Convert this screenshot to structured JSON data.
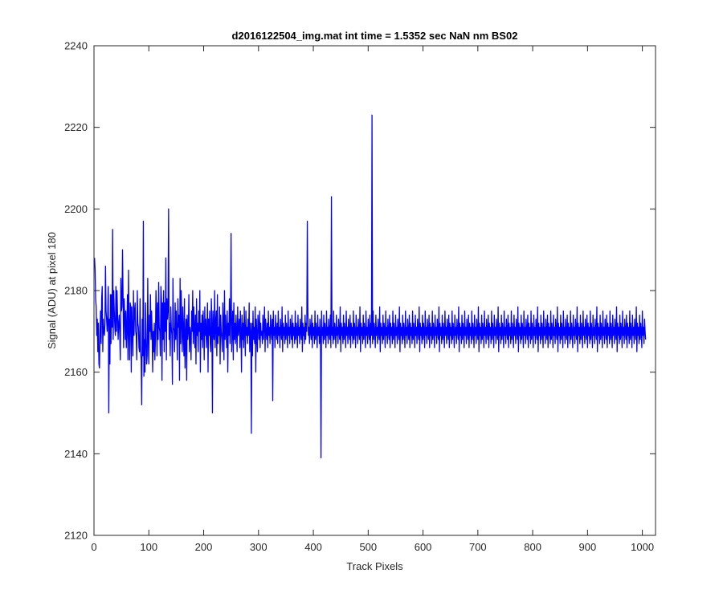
{
  "chart_data": {
    "type": "line",
    "title": "d2016122504_img.mat int time = 1.5352 sec  NaN nm BS02",
    "xlabel": "Track Pixels",
    "ylabel": "Signal (ADU) at pixel 180",
    "xlim": [
      0,
      1024
    ],
    "ylim": [
      2120,
      2240
    ],
    "xticks": [
      0,
      100,
      200,
      300,
      400,
      500,
      600,
      700,
      800,
      900,
      1000
    ],
    "yticks": [
      2120,
      2140,
      2160,
      2180,
      2200,
      2220,
      2240
    ],
    "grid": false,
    "legend": "none",
    "line_color": "#0000ff",
    "series": [
      {
        "x_start": 1,
        "x_step": 1,
        "values": [
          2188,
          2185,
          2178,
          2176,
          2169,
          2173,
          2165,
          2172,
          2162,
          2161,
          2170,
          2175,
          2167,
          2178,
          2181,
          2165,
          2173,
          2170,
          2169,
          2172,
          2186,
          2175,
          2173,
          2170,
          2174,
          2181,
          2150,
          2173,
          2162,
          2179,
          2167,
          2179,
          2171,
          2195,
          2168,
          2180,
          2175,
          2171,
          2169,
          2181,
          2170,
          2180,
          2174,
          2168,
          2172,
          2174,
          2169,
          2163,
          2183,
          2175,
          2176,
          2190,
          2179,
          2166,
          2178,
          2174,
          2168,
          2175,
          2166,
          2171,
          2179,
          2163,
          2185,
          2170,
          2163,
          2177,
          2176,
          2160,
          2176,
          2170,
          2164,
          2180,
          2169,
          2175,
          2177,
          2170,
          2169,
          2163,
          2180,
          2172,
          2171,
          2166,
          2165,
          2178,
          2165,
          2163,
          2152,
          2173,
          2164,
          2197,
          2159,
          2168,
          2160,
          2177,
          2168,
          2162,
          2164,
          2183,
          2168,
          2162,
          2174,
          2170,
          2179,
          2168,
          2175,
          2170,
          2160,
          2170,
          2165,
          2172,
          2163,
          2168,
          2180,
          2175,
          2164,
          2177,
          2168,
          2182,
          2171,
          2170,
          2164,
          2181,
          2178,
          2158,
          2177,
          2168,
          2180,
          2165,
          2177,
          2170,
          2188,
          2163,
          2178,
          2173,
          2175,
          2200,
          2168,
          2172,
          2164,
          2176,
          2171,
          2169,
          2157,
          2183,
          2171,
          2170,
          2165,
          2177,
          2168,
          2175,
          2170,
          2163,
          2178,
          2171,
          2174,
          2158,
          2183,
          2167,
          2180,
          2172,
          2165,
          2176,
          2170,
          2164,
          2178,
          2161,
          2169,
          2173,
          2158,
          2174,
          2168,
          2170,
          2179,
          2165,
          2171,
          2169,
          2163,
          2175,
          2170,
          2180,
          2167,
          2176,
          2171,
          2166,
          2174,
          2162,
          2178,
          2169,
          2172,
          2165,
          2175,
          2170,
          2180,
          2160,
          2172,
          2168,
          2174,
          2166,
          2175,
          2171,
          2163,
          2176,
          2169,
          2173,
          2166,
          2170,
          2177,
          2160,
          2173,
          2169,
          2175,
          2167,
          2165,
          2178,
          2172,
          2150,
          2175,
          2170,
          2168,
          2180,
          2166,
          2172,
          2175,
          2164,
          2179,
          2167,
          2171,
          2169,
          2176,
          2162,
          2174,
          2170,
          2168,
          2165,
          2177,
          2172,
          2163,
          2180,
          2168,
          2174,
          2170,
          2166,
          2175,
          2160,
          2172,
          2169,
          2178,
          2167,
          2173,
          2194,
          2165,
          2170,
          2175,
          2163,
          2177,
          2168,
          2172,
          2167,
          2174,
          2170,
          2165,
          2176,
          2169,
          2171,
          2173,
          2166,
          2175,
          2170,
          2160,
          2174,
          2168,
          2172,
          2166,
          2176,
          2170,
          2164,
          2175,
          2169,
          2171,
          2167,
          2173,
          2169,
          2177,
          2165,
          2172,
          2170,
          2145,
          2172,
          2164,
          2175,
          2168,
          2171,
          2167,
          2176,
          2160,
          2173,
          2169,
          2165,
          2174,
          2171,
          2168,
          2175,
          2166,
          2172,
          2169,
          2170,
          2167,
          2174,
          2168,
          2171,
          2176,
          2165,
          2173,
          2170,
          2168,
          2172,
          2166,
          2175,
          2169,
          2171,
          2167,
          2174,
          2170,
          2168,
          2173,
          2153,
          2175,
          2169,
          2171,
          2166,
          2174,
          2170,
          2168,
          2172,
          2167,
          2175,
          2169,
          2171,
          2166,
          2173,
          2170,
          2168,
          2176,
          2165,
          2172,
          2169,
          2171,
          2167,
          2174,
          2168,
          2172,
          2170,
          2166,
          2175,
          2169,
          2171,
          2167,
          2173,
          2170,
          2168,
          2174,
          2166,
          2172,
          2169,
          2171,
          2167,
          2175,
          2168,
          2172,
          2170,
          2166,
          2174,
          2169,
          2171,
          2167,
          2173,
          2170,
          2168,
          2176,
          2165,
          2172,
          2169,
          2171,
          2167,
          2174,
          2168,
          2172,
          2170,
          2197,
          2175,
          2169,
          2171,
          2167,
          2173,
          2170,
          2168,
          2174,
          2166,
          2172,
          2169,
          2171,
          2167,
          2175,
          2168,
          2172,
          2170,
          2166,
          2174,
          2169,
          2171,
          2167,
          2173,
          2170,
          2139,
          2175,
          2169,
          2171,
          2167,
          2174,
          2168,
          2172,
          2170,
          2166,
          2175,
          2169,
          2171,
          2167,
          2173,
          2170,
          2168,
          2174,
          2166,
          2203,
          2169,
          2171,
          2167,
          2175,
          2168,
          2172,
          2170,
          2166,
          2174,
          2169,
          2171,
          2167,
          2173,
          2170,
          2168,
          2176,
          2165,
          2172,
          2169,
          2171,
          2167,
          2174,
          2168,
          2172,
          2170,
          2166,
          2175,
          2169,
          2171,
          2167,
          2173,
          2170,
          2168,
          2174,
          2166,
          2172,
          2169,
          2171,
          2167,
          2175,
          2168,
          2172,
          2170,
          2166,
          2174,
          2169,
          2171,
          2167,
          2173,
          2170,
          2168,
          2176,
          2165,
          2172,
          2169,
          2171,
          2167,
          2174,
          2168,
          2172,
          2170,
          2166,
          2175,
          2169,
          2171,
          2167,
          2173,
          2170,
          2168,
          2174,
          2166,
          2172,
          2169,
          2223,
          2167,
          2175,
          2168,
          2172,
          2170,
          2166,
          2174,
          2169,
          2171,
          2167,
          2173,
          2170,
          2168,
          2176,
          2165,
          2172,
          2169,
          2171,
          2167,
          2174,
          2168,
          2172,
          2170,
          2166,
          2175,
          2169,
          2171,
          2167,
          2173,
          2170,
          2168,
          2174,
          2166,
          2172,
          2169,
          2171,
          2167,
          2175,
          2168,
          2172,
          2170,
          2166,
          2174,
          2169,
          2171,
          2167,
          2173,
          2170,
          2168,
          2176,
          2165,
          2172,
          2169,
          2171,
          2167,
          2174,
          2168,
          2172,
          2170,
          2166,
          2175,
          2169,
          2171,
          2167,
          2173,
          2170,
          2168,
          2174,
          2166,
          2172,
          2169,
          2171,
          2167,
          2175,
          2168,
          2172,
          2170,
          2166,
          2174,
          2169,
          2171,
          2167,
          2173,
          2170,
          2168,
          2176,
          2165,
          2172,
          2169,
          2171,
          2167,
          2174,
          2168,
          2172,
          2170,
          2166,
          2175,
          2169,
          2171,
          2167,
          2173,
          2170,
          2168,
          2174,
          2166,
          2172,
          2169,
          2171,
          2167,
          2175,
          2168,
          2172,
          2170,
          2166,
          2174,
          2169,
          2171,
          2167,
          2173,
          2170,
          2168,
          2176,
          2165,
          2172,
          2169,
          2171,
          2167,
          2174,
          2168,
          2172,
          2170,
          2166,
          2175,
          2169,
          2171,
          2167,
          2173,
          2170,
          2168,
          2174,
          2166,
          2172,
          2169,
          2171,
          2167,
          2175,
          2168,
          2172,
          2170,
          2166,
          2174,
          2169,
          2171,
          2167,
          2173,
          2170,
          2168,
          2176,
          2165,
          2172,
          2169,
          2171,
          2167,
          2174,
          2168,
          2172,
          2170,
          2166,
          2175,
          2169,
          2171,
          2167,
          2173,
          2170,
          2168,
          2174,
          2166,
          2172,
          2169,
          2171,
          2167,
          2175,
          2168,
          2172,
          2170,
          2166,
          2174,
          2169,
          2171,
          2167,
          2173,
          2170,
          2168,
          2176,
          2165,
          2172,
          2169,
          2171,
          2167,
          2174,
          2168,
          2172,
          2170,
          2166,
          2175,
          2169,
          2171,
          2167,
          2173,
          2170,
          2168,
          2174,
          2166,
          2172,
          2169,
          2171,
          2167,
          2175,
          2168,
          2172,
          2170,
          2166,
          2174,
          2169,
          2171,
          2167,
          2173,
          2170,
          2168,
          2176,
          2165,
          2172,
          2169,
          2171,
          2167,
          2174,
          2168,
          2172,
          2170,
          2166,
          2175,
          2169,
          2171,
          2167,
          2173,
          2170,
          2168,
          2174,
          2166,
          2172,
          2169,
          2171,
          2167,
          2175,
          2168,
          2172,
          2170,
          2166,
          2174,
          2169,
          2171,
          2167,
          2173,
          2170,
          2168,
          2176,
          2165,
          2172,
          2169,
          2171,
          2167,
          2174,
          2168,
          2172,
          2170,
          2166,
          2175,
          2169,
          2171,
          2167,
          2173,
          2170,
          2168,
          2174,
          2166,
          2172,
          2169,
          2171,
          2167,
          2175,
          2168,
          2172,
          2170,
          2166,
          2174,
          2169,
          2171,
          2167,
          2173,
          2170,
          2168,
          2176,
          2165,
          2172,
          2169,
          2171,
          2167,
          2174,
          2168,
          2172,
          2170,
          2166,
          2175,
          2169,
          2171,
          2167,
          2173,
          2170,
          2168,
          2174,
          2166,
          2172,
          2169,
          2171,
          2167,
          2175,
          2168,
          2172,
          2170,
          2166,
          2174,
          2169,
          2171,
          2167,
          2173,
          2170,
          2168,
          2176,
          2165,
          2172,
          2169,
          2171,
          2167,
          2174,
          2168,
          2172,
          2170,
          2166,
          2175,
          2169,
          2171,
          2167,
          2173,
          2170,
          2168,
          2174,
          2166,
          2172,
          2169,
          2171,
          2167,
          2175,
          2168,
          2172,
          2170,
          2166,
          2174,
          2169,
          2171,
          2167,
          2173,
          2170,
          2168,
          2176,
          2165,
          2172,
          2169,
          2171,
          2167,
          2174,
          2168,
          2172,
          2170,
          2166,
          2175,
          2169,
          2171,
          2167,
          2173,
          2170,
          2168,
          2174,
          2166,
          2172,
          2169,
          2171,
          2167,
          2175,
          2168,
          2172,
          2170,
          2166,
          2174,
          2169,
          2171,
          2167,
          2173,
          2170,
          2168,
          2176,
          2165,
          2172,
          2169,
          2171,
          2167,
          2174,
          2168,
          2172,
          2170,
          2166,
          2175,
          2169,
          2171,
          2167,
          2173,
          2170,
          2168,
          2174,
          2166,
          2172,
          2169,
          2171,
          2167,
          2175,
          2168,
          2172,
          2170,
          2166,
          2174,
          2169,
          2171,
          2167,
          2173,
          2170,
          2168,
          2176,
          2165,
          2172,
          2169,
          2171,
          2167,
          2174,
          2168,
          2172,
          2170,
          2166,
          2175,
          2169,
          2171,
          2167,
          2173,
          2170,
          2168,
          2174,
          2166,
          2172,
          2169,
          2171,
          2167,
          2175,
          2168,
          2172,
          2170,
          2166,
          2174,
          2169,
          2171,
          2167,
          2173,
          2170,
          2168,
          2176,
          2165,
          2172,
          2169,
          2171,
          2167,
          2174,
          2168,
          2172,
          2170,
          2166,
          2175,
          2169,
          2171,
          2167,
          2173,
          2170,
          2168
        ]
      }
    ]
  }
}
